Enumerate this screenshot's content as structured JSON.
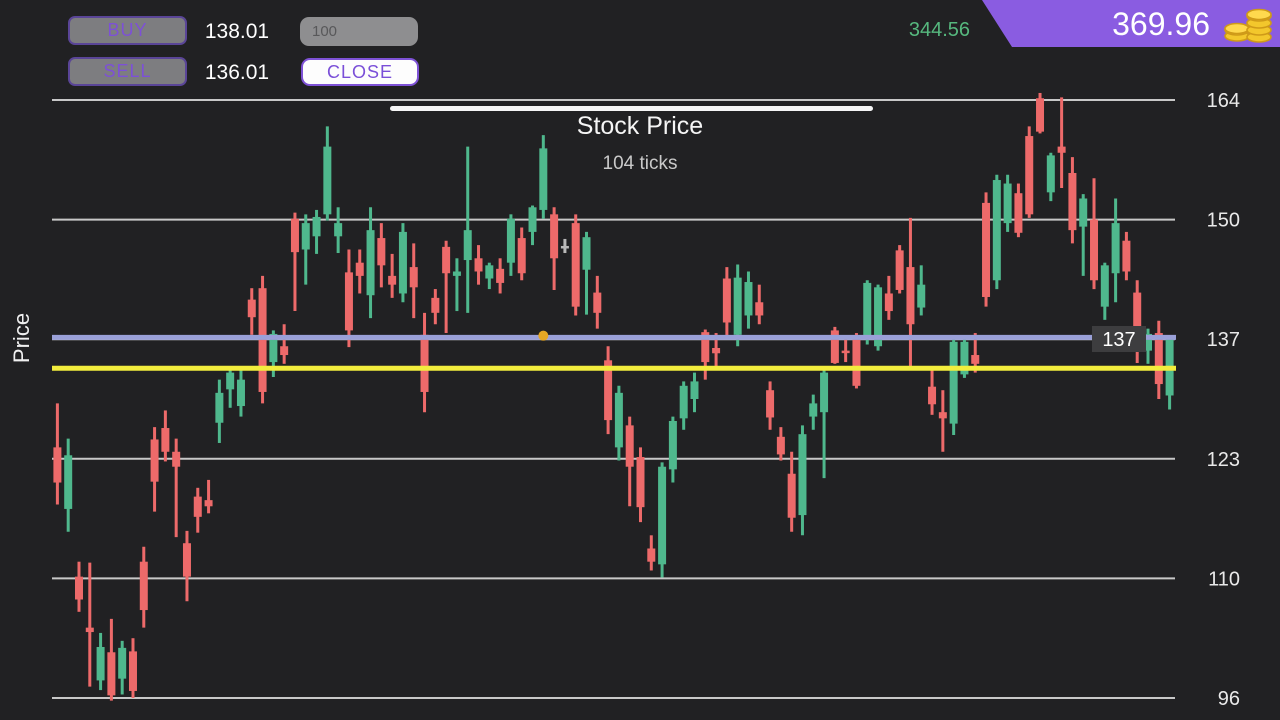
{
  "top_bar": {
    "buy_button": "BUY",
    "buy_price": "138.01",
    "sell_button": "SELL",
    "sell_price": "136.01",
    "quantity_value": "100",
    "close_button": "CLOSE",
    "unrealized_pnl": "344.56",
    "balance": "369.96",
    "coins_icon": "gold-coins",
    "colors": {
      "pnl_green": "#56b87e",
      "banner_purple": "#8a5ce1",
      "accent_purple": "#7d50d6"
    }
  },
  "chart": {
    "title": "Stock Price",
    "subtitle": "104 ticks",
    "ylabel": "Price",
    "price_tag": "137"
  },
  "chart_data": {
    "type": "candlestick",
    "title": "Stock Price",
    "subtitle": "104 ticks",
    "ylabel": "Price",
    "y_tick_labels": [
      "164",
      "150",
      "137",
      "123",
      "110",
      "96"
    ],
    "y_range": [
      96,
      164
    ],
    "grid": true,
    "current_price": 137.01,
    "current_price_tag": "137",
    "entry_line_price": 133.5,
    "entry_marker": {
      "tick": 45,
      "price": 137.2
    },
    "colors": {
      "up": "#4fb88d",
      "down": "#ed6a6a",
      "flat": "#b9b9b9",
      "grid": "#c8c8c8",
      "current_price_line": "#9aa0d8",
      "entry_line": "#f2ed3d",
      "marker": "#e5a724",
      "tag_bg": "#3d3d3f",
      "tag_text": "#ffffff",
      "axis_text": "#e9e9e9"
    },
    "candles": [
      [
        124.5,
        129.5,
        118.0,
        120.5
      ],
      [
        117.5,
        125.5,
        114.9,
        123.6
      ],
      [
        109.8,
        111.5,
        105.8,
        107.2
      ],
      [
        104.0,
        111.4,
        97.3,
        103.5
      ],
      [
        98.0,
        103.4,
        96.9,
        101.8
      ],
      [
        101.2,
        105.0,
        95.7,
        96.3
      ],
      [
        98.2,
        102.5,
        96.4,
        101.7
      ],
      [
        101.3,
        102.8,
        96.0,
        96.8
      ],
      [
        111.5,
        113.2,
        104.0,
        106.0
      ],
      [
        125.4,
        126.8,
        117.2,
        120.6
      ],
      [
        126.7,
        128.7,
        122.9,
        124.0
      ],
      [
        124.0,
        125.5,
        114.3,
        122.3
      ],
      [
        113.6,
        115.0,
        107.0,
        109.8
      ],
      [
        118.9,
        119.9,
        114.8,
        116.6
      ],
      [
        118.5,
        120.8,
        117.0,
        117.8
      ],
      [
        127.3,
        132.2,
        125.0,
        130.7
      ],
      [
        131.1,
        133.5,
        129.0,
        133.0
      ],
      [
        129.2,
        133.4,
        128.0,
        132.2
      ],
      [
        141.3,
        142.6,
        137.3,
        139.3
      ],
      [
        142.6,
        144.0,
        129.5,
        130.8
      ],
      [
        134.2,
        137.8,
        132.5,
        137.4
      ],
      [
        136.0,
        138.5,
        134.0,
        135.0
      ],
      [
        150.5,
        151.2,
        140.0,
        146.7
      ],
      [
        147.0,
        151.0,
        143.0,
        150.0
      ],
      [
        148.5,
        151.5,
        146.5,
        150.7
      ],
      [
        151.0,
        161.0,
        150.3,
        158.7
      ],
      [
        148.5,
        151.8,
        146.6,
        150.0
      ],
      [
        144.4,
        147.0,
        135.9,
        137.8
      ],
      [
        145.5,
        147.0,
        142.0,
        144.0
      ],
      [
        141.8,
        151.8,
        139.2,
        149.2
      ],
      [
        148.3,
        150.0,
        142.7,
        145.2
      ],
      [
        144.0,
        146.5,
        141.5,
        143.0
      ],
      [
        142.0,
        150.0,
        141.0,
        149.0
      ],
      [
        145.0,
        147.7,
        139.2,
        142.7
      ],
      [
        137.3,
        139.8,
        128.5,
        130.8
      ],
      [
        141.5,
        142.5,
        138.5,
        139.8
      ],
      [
        147.3,
        148.0,
        137.5,
        144.3
      ],
      [
        144.0,
        146.0,
        140.0,
        144.5
      ],
      [
        145.8,
        158.7,
        139.8,
        149.2
      ],
      [
        146.0,
        147.5,
        143.0,
        144.5
      ],
      [
        143.7,
        145.5,
        142.5,
        145.2
      ],
      [
        144.8,
        146.0,
        142.0,
        143.2
      ],
      [
        145.5,
        151.0,
        144.0,
        150.5
      ],
      [
        148.3,
        149.5,
        143.5,
        144.3
      ],
      [
        149.0,
        152.0,
        147.5,
        151.8
      ],
      [
        151.5,
        160.0,
        150.5,
        158.5
      ],
      [
        151.0,
        151.8,
        142.4,
        146.0
      ],
      [
        147.4,
        148.2,
        146.6,
        147.4
      ],
      [
        150.0,
        151.0,
        139.5,
        140.5
      ],
      [
        144.7,
        149.0,
        139.6,
        148.4
      ],
      [
        142.1,
        144.0,
        138.0,
        139.8
      ],
      [
        134.4,
        136.0,
        126.0,
        127.6
      ],
      [
        124.5,
        131.5,
        123.0,
        130.7
      ],
      [
        127.0,
        128.0,
        117.8,
        122.3
      ],
      [
        123.4,
        124.5,
        116.0,
        117.7
      ],
      [
        113.0,
        114.5,
        110.5,
        111.5
      ],
      [
        111.2,
        122.8,
        109.7,
        122.3
      ],
      [
        122.0,
        128.0,
        120.5,
        127.5
      ],
      [
        127.8,
        132.0,
        126.5,
        131.5
      ],
      [
        130.0,
        133.0,
        128.5,
        132.0
      ],
      [
        137.6,
        137.9,
        132.2,
        134.2
      ],
      [
        135.8,
        137.5,
        133.5,
        135.2
      ],
      [
        143.7,
        145.0,
        137.2,
        138.7
      ],
      [
        137.3,
        145.3,
        136.0,
        143.8
      ],
      [
        139.5,
        144.5,
        138.0,
        143.3
      ],
      [
        141.0,
        143.0,
        138.5,
        139.5
      ],
      [
        131.0,
        132.0,
        126.5,
        127.9
      ],
      [
        125.7,
        126.8,
        123.0,
        123.7
      ],
      [
        121.5,
        124.0,
        114.9,
        116.5
      ],
      [
        116.8,
        127.0,
        114.5,
        126.0
      ],
      [
        128.0,
        130.5,
        126.5,
        129.5
      ],
      [
        128.5,
        133.5,
        121.0,
        133.0
      ],
      [
        137.8,
        138.2,
        134.0,
        134.1
      ],
      [
        135.5,
        136.8,
        134.2,
        135.3
      ],
      [
        136.9,
        137.5,
        131.2,
        131.5
      ],
      [
        137.0,
        143.5,
        136.2,
        143.2
      ],
      [
        136.0,
        143.0,
        135.5,
        142.7
      ],
      [
        142.0,
        144.0,
        139.0,
        140.0
      ],
      [
        146.9,
        147.5,
        142.0,
        142.4
      ],
      [
        145.0,
        150.6,
        133.7,
        138.5
      ],
      [
        140.4,
        145.2,
        139.5,
        143.0
      ],
      [
        131.4,
        133.3,
        128.2,
        129.4
      ],
      [
        128.5,
        131.0,
        124.0,
        127.8
      ],
      [
        127.2,
        136.9,
        125.9,
        136.5
      ],
      [
        132.8,
        137.0,
        132.4,
        136.5
      ],
      [
        135.0,
        137.5,
        133.0,
        134.0
      ],
      [
        152.3,
        153.5,
        140.5,
        141.6
      ],
      [
        143.5,
        155.5,
        142.5,
        154.9
      ],
      [
        150.0,
        155.5,
        149.0,
        154.5
      ],
      [
        153.4,
        154.5,
        148.4,
        148.9
      ],
      [
        159.9,
        161.0,
        150.6,
        151.0
      ],
      [
        164.2,
        164.8,
        160.2,
        160.4
      ],
      [
        153.5,
        158.0,
        152.5,
        157.7
      ],
      [
        158.7,
        164.3,
        154.0,
        158.0
      ],
      [
        155.7,
        157.5,
        147.7,
        149.2
      ],
      [
        149.6,
        153.3,
        144.0,
        152.8
      ],
      [
        150.4,
        155.1,
        142.5,
        143.5
      ],
      [
        140.5,
        145.5,
        139.0,
        145.2
      ],
      [
        144.3,
        152.8,
        141.0,
        150.0
      ],
      [
        148.0,
        149.0,
        143.5,
        144.5
      ],
      [
        142.1,
        143.5,
        134.1,
        137.6
      ],
      [
        135.5,
        138.0,
        134.0,
        137.4
      ],
      [
        137.5,
        138.9,
        130.0,
        131.7
      ],
      [
        130.4,
        137.2,
        128.8,
        136.9
      ]
    ]
  }
}
